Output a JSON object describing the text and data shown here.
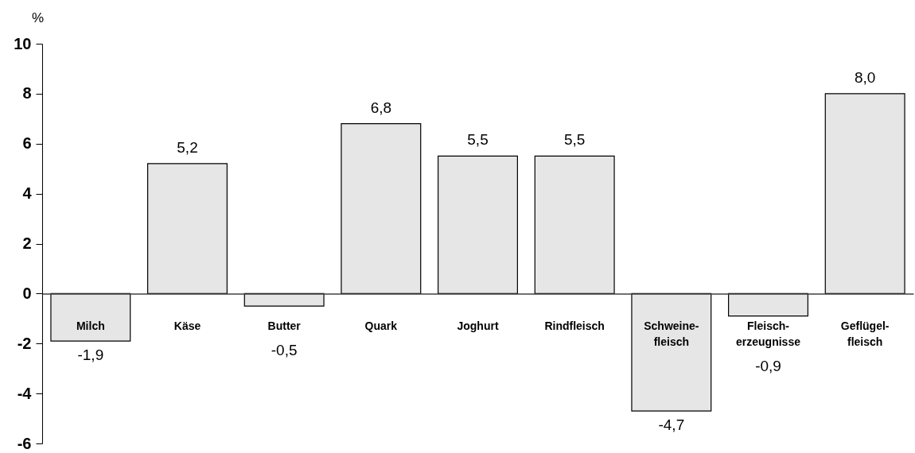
{
  "chart_data": {
    "type": "bar",
    "ylabel": "%",
    "categories": [
      "Milch",
      "Käse",
      "Butter",
      "Quark",
      "Joghurt",
      "Rindfleisch",
      "Schweine-\nfleisch",
      "Fleisch-\nerzeugnisse",
      "Geflügel-\nfleisch"
    ],
    "values": [
      -1.9,
      5.2,
      -0.5,
      6.8,
      5.5,
      5.5,
      -4.7,
      -0.9,
      8.0
    ],
    "value_labels": [
      "-1,9",
      "5,2",
      "-0,5",
      "6,8",
      "5,5",
      "5,5",
      "-4,7",
      "-0,9",
      "8,0"
    ],
    "color": "#e6e6e6",
    "ylim": [
      -6,
      10
    ],
    "yticks": [
      -6,
      -4,
      -2,
      0,
      2,
      4,
      6,
      8,
      10
    ]
  }
}
